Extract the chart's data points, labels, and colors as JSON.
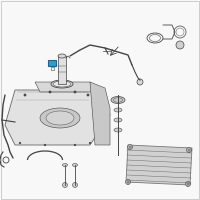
{
  "background_color": "#f8f8f8",
  "line_color": "#444444",
  "highlight_color": "#3399cc",
  "part_colors": {
    "tank": "#e2e2e2",
    "tank_stroke": "#666666",
    "skid": "#d0d0d0",
    "skid_stroke": "#777777",
    "highlight_box": "#3399cc",
    "highlight_stroke": "#1a6688",
    "pump": "#e0e0e0",
    "metal": "#cccccc"
  },
  "figsize": [
    2.0,
    2.0
  ],
  "dpi": 100
}
